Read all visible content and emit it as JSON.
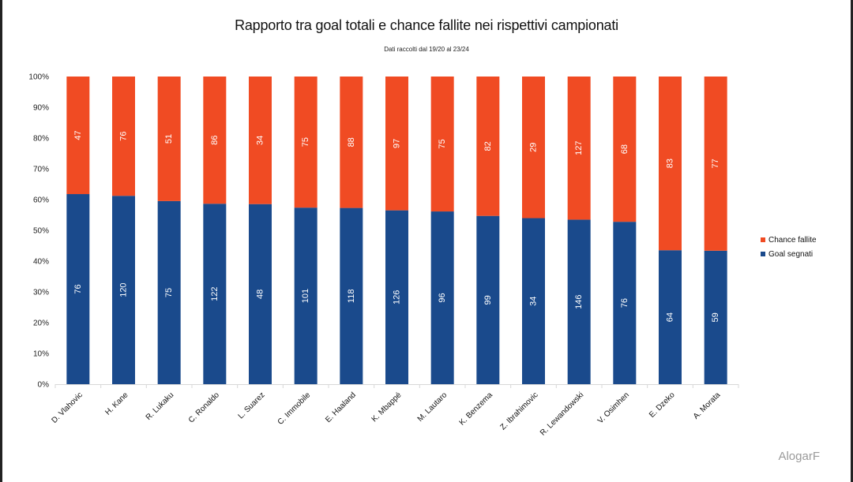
{
  "title": "Rapporto tra goal totali e chance fallite nei rispettivi campionati",
  "subtitle": "Dati raccolti dal 19/20 al 23/24",
  "watermark": "AlogarF",
  "colors": {
    "goal": "#1a4a8c",
    "chance": "#f04b23"
  },
  "chart_data": {
    "type": "bar",
    "stacked": "percent",
    "categories": [
      "D. Vlahovic",
      "H. Kane",
      "R. Lukaku",
      "C. Ronaldo",
      "L. Suarez",
      "C. Immobile",
      "E. Haaland",
      "K. Mbappé",
      "M. Lautaro",
      "K. Benzema",
      "Z. Ibrahimovic",
      "R. Lewandowski",
      "V. Osimhen",
      "E. Dzeko",
      "A. Morata"
    ],
    "series": [
      {
        "name": "Goal segnati",
        "values": [
          76,
          120,
          75,
          122,
          48,
          101,
          118,
          126,
          96,
          99,
          34,
          146,
          76,
          64,
          59
        ]
      },
      {
        "name": "Chance fallite",
        "values": [
          47,
          76,
          51,
          86,
          34,
          75,
          88,
          97,
          75,
          82,
          29,
          127,
          68,
          83,
          77
        ]
      }
    ],
    "legend": [
      {
        "name": "Chance fallite"
      },
      {
        "name": "Goal segnati"
      }
    ],
    "legend_position": "right",
    "y_ticks": [
      "0%",
      "10%",
      "20%",
      "30%",
      "40%",
      "50%",
      "60%",
      "70%",
      "80%",
      "90%",
      "100%"
    ],
    "ylim": [
      0,
      100
    ],
    "grid": false
  }
}
